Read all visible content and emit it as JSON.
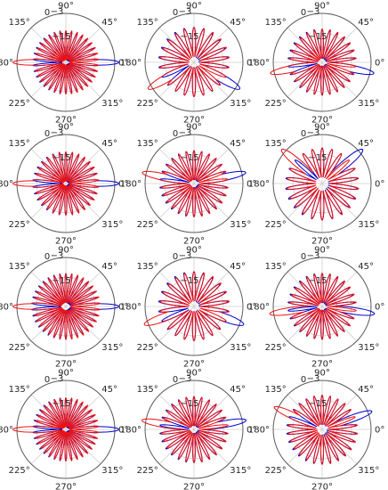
{
  "figure": {
    "layout": {
      "rows": 4,
      "columns": 3
    },
    "colors": {
      "series_a": "#0000cc",
      "series_b": "#ee1111",
      "frame": "#5a5a5a",
      "grid": "#cfcfcf"
    }
  },
  "chart_data": [
    {
      "type": "polar",
      "theta_ticks": [
        "0°",
        "45°",
        "90°",
        "135°",
        "180°",
        "225°",
        "270°",
        "315°"
      ],
      "r_ticks": [
        "0",
        "−3",
        "−15"
      ],
      "r_range_db": [
        -40,
        0
      ],
      "series": [
        {
          "main_lobe_deg": 0,
          "main_width_deg": 5,
          "main_gain_db": 0,
          "sidelobes": 17,
          "sidelobe_gain_db": -15
        },
        {
          "main_lobe_deg": 180,
          "main_width_deg": 5,
          "main_gain_db": 0,
          "sidelobes": 17,
          "sidelobe_gain_db": -15
        }
      ]
    },
    {
      "type": "polar",
      "theta_ticks": [
        "0°",
        "45°",
        "90°",
        "135°",
        "180°",
        "225°",
        "270°",
        "315°"
      ],
      "r_ticks": [
        "0",
        "−3",
        "−15"
      ],
      "r_range_db": [
        -40,
        0
      ],
      "series": [
        {
          "main_lobe_deg": 330,
          "main_width_deg": 7,
          "main_gain_db": 0,
          "sidelobes": 11,
          "sidelobe_gain_db": -13
        },
        {
          "main_lobe_deg": 210,
          "main_width_deg": 7,
          "main_gain_db": 0,
          "sidelobes": 11,
          "sidelobe_gain_db": -13
        }
      ]
    },
    {
      "type": "polar",
      "theta_ticks": [
        "0°",
        "45°",
        "90°",
        "135°",
        "180°",
        "225°",
        "270°",
        "315°"
      ],
      "r_ticks": [
        "0",
        "−3",
        "−15"
      ],
      "r_range_db": [
        -40,
        0
      ],
      "series": [
        {
          "main_lobe_deg": 348,
          "main_width_deg": 6,
          "main_gain_db": 0,
          "sidelobes": 13,
          "sidelobe_gain_db": -14
        },
        {
          "main_lobe_deg": 192,
          "main_width_deg": 6,
          "main_gain_db": 0,
          "sidelobes": 13,
          "sidelobe_gain_db": -14
        }
      ]
    },
    {
      "type": "polar",
      "theta_ticks": [
        "0°",
        "45°",
        "90°",
        "135°",
        "180°",
        "225°",
        "270°",
        "315°"
      ],
      "r_ticks": [
        "0",
        "−3",
        "−15"
      ],
      "r_range_db": [
        -40,
        0
      ],
      "series": [
        {
          "main_lobe_deg": 0,
          "main_width_deg": 5,
          "main_gain_db": 0,
          "sidelobes": 15,
          "sidelobe_gain_db": -15
        },
        {
          "main_lobe_deg": 180,
          "main_width_deg": 5,
          "main_gain_db": 0,
          "sidelobes": 15,
          "sidelobe_gain_db": -15
        }
      ]
    },
    {
      "type": "polar",
      "theta_ticks": [
        "0°",
        "45°",
        "90°",
        "135°",
        "180°",
        "225°",
        "270°",
        "315°"
      ],
      "r_ticks": [
        "0",
        "−3",
        "−15"
      ],
      "r_range_db": [
        -40,
        0
      ],
      "series": [
        {
          "main_lobe_deg": 12,
          "main_width_deg": 6,
          "main_gain_db": 0,
          "sidelobes": 13,
          "sidelobe_gain_db": -14
        },
        {
          "main_lobe_deg": 168,
          "main_width_deg": 6,
          "main_gain_db": 0,
          "sidelobes": 13,
          "sidelobe_gain_db": -14
        }
      ]
    },
    {
      "type": "polar",
      "theta_ticks": [
        "0°",
        "45°",
        "90°",
        "135°",
        "180°",
        "225°",
        "270°",
        "315°"
      ],
      "r_ticks": [
        "0",
        "−3",
        "−15"
      ],
      "r_range_db": [
        -40,
        0
      ],
      "series": [
        {
          "main_lobe_deg": 40,
          "main_width_deg": 7,
          "main_gain_db": 0,
          "sidelobes": 11,
          "sidelobe_gain_db": -12
        },
        {
          "main_lobe_deg": 140,
          "main_width_deg": 7,
          "main_gain_db": 0,
          "sidelobes": 11,
          "sidelobe_gain_db": -12
        }
      ]
    },
    {
      "type": "polar",
      "theta_ticks": [
        "0°",
        "45°",
        "90°",
        "135°",
        "180°",
        "225°",
        "270°",
        "315°"
      ],
      "r_ticks": [
        "0",
        "−3",
        "−15"
      ],
      "r_range_db": [
        -40,
        0
      ],
      "series": [
        {
          "main_lobe_deg": 0,
          "main_width_deg": 5,
          "main_gain_db": 0,
          "sidelobes": 17,
          "sidelobe_gain_db": -14
        },
        {
          "main_lobe_deg": 180,
          "main_width_deg": 5,
          "main_gain_db": 0,
          "sidelobes": 17,
          "sidelobe_gain_db": -14
        }
      ]
    },
    {
      "type": "polar",
      "theta_ticks": [
        "0°",
        "45°",
        "90°",
        "135°",
        "180°",
        "225°",
        "270°",
        "315°"
      ],
      "r_ticks": [
        "0",
        "−3",
        "−15"
      ],
      "r_range_db": [
        -40,
        0
      ],
      "series": [
        {
          "main_lobe_deg": 340,
          "main_width_deg": 7,
          "main_gain_db": 0,
          "sidelobes": 11,
          "sidelobe_gain_db": -13
        },
        {
          "main_lobe_deg": 200,
          "main_width_deg": 7,
          "main_gain_db": 0,
          "sidelobes": 11,
          "sidelobe_gain_db": -13
        }
      ]
    },
    {
      "type": "polar",
      "theta_ticks": [
        "0°",
        "45°",
        "90°",
        "135°",
        "180°",
        "225°",
        "270°",
        "315°"
      ],
      "r_ticks": [
        "0",
        "−3",
        "−15"
      ],
      "r_range_db": [
        -40,
        0
      ],
      "series": [
        {
          "main_lobe_deg": 352,
          "main_width_deg": 6,
          "main_gain_db": 0,
          "sidelobes": 13,
          "sidelobe_gain_db": -14
        },
        {
          "main_lobe_deg": 188,
          "main_width_deg": 6,
          "main_gain_db": 0,
          "sidelobes": 13,
          "sidelobe_gain_db": -14
        }
      ]
    },
    {
      "type": "polar",
      "theta_ticks": [
        "0°",
        "45°",
        "90°",
        "135°",
        "180°",
        "225°",
        "270°",
        "315°"
      ],
      "r_ticks": [
        "0",
        "−3",
        "−15"
      ],
      "r_range_db": [
        -40,
        0
      ],
      "series": [
        {
          "main_lobe_deg": 0,
          "main_width_deg": 5,
          "main_gain_db": 0,
          "sidelobes": 17,
          "sidelobe_gain_db": -15
        },
        {
          "main_lobe_deg": 180,
          "main_width_deg": 5,
          "main_gain_db": 0,
          "sidelobes": 17,
          "sidelobe_gain_db": -15
        }
      ]
    },
    {
      "type": "polar",
      "theta_ticks": [
        "0°",
        "45°",
        "90°",
        "135°",
        "180°",
        "225°",
        "270°",
        "315°"
      ],
      "r_ticks": [
        "0",
        "−3",
        "−15"
      ],
      "r_range_db": [
        -40,
        0
      ],
      "series": [
        {
          "main_lobe_deg": 10,
          "main_width_deg": 6,
          "main_gain_db": 0,
          "sidelobes": 13,
          "sidelobe_gain_db": -14
        },
        {
          "main_lobe_deg": 170,
          "main_width_deg": 6,
          "main_gain_db": 0,
          "sidelobes": 13,
          "sidelobe_gain_db": -14
        }
      ]
    },
    {
      "type": "polar",
      "theta_ticks": [
        "0°",
        "45°",
        "90°",
        "135°",
        "180°",
        "225°",
        "270°",
        "315°"
      ],
      "r_ticks": [
        "0",
        "−3",
        "−15"
      ],
      "r_range_db": [
        -40,
        0
      ],
      "series": [
        {
          "main_lobe_deg": 20,
          "main_width_deg": 6,
          "main_gain_db": 0,
          "sidelobes": 13,
          "sidelobe_gain_db": -13
        },
        {
          "main_lobe_deg": 155,
          "main_width_deg": 6,
          "main_gain_db": 0,
          "sidelobes": 13,
          "sidelobe_gain_db": -13
        }
      ]
    }
  ]
}
